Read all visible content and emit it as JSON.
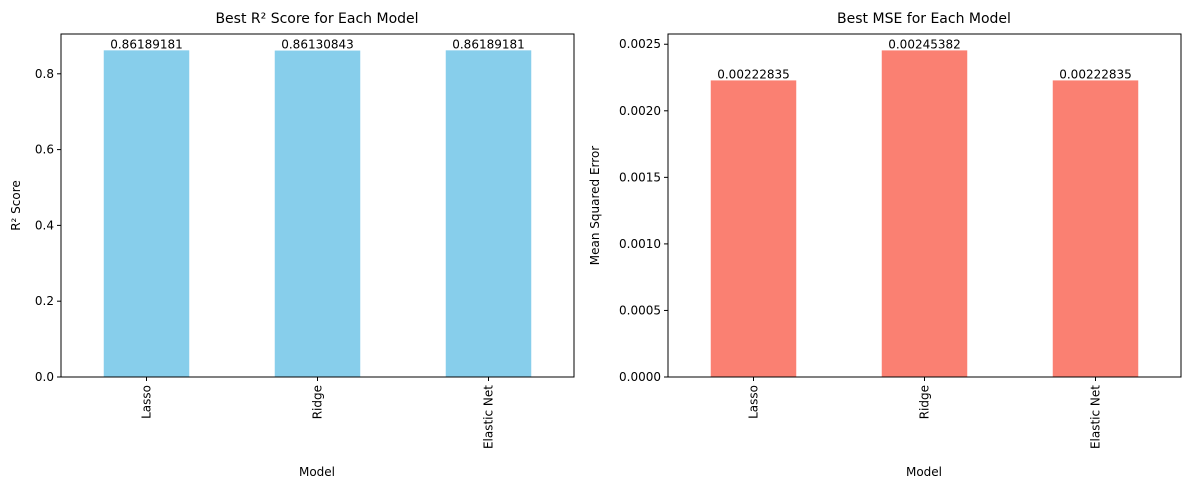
{
  "chart_data": [
    {
      "type": "bar",
      "title": "Best R² Score for Each Model",
      "xlabel": "Model",
      "ylabel": "R² Score",
      "categories": [
        "Lasso",
        "Ridge",
        "Elastic Net"
      ],
      "values": [
        0.86189181,
        0.86130843,
        0.86189181
      ],
      "value_labels": [
        "0.86189181",
        "0.86130843",
        "0.86189181"
      ],
      "yticks": [
        0.0,
        0.2,
        0.4,
        0.6,
        0.8
      ],
      "ytick_labels": [
        "0.0",
        "0.2",
        "0.4",
        "0.6",
        "0.8"
      ],
      "ylim": [
        0,
        0.905
      ],
      "color": "#87ceeb",
      "grid": false
    },
    {
      "type": "bar",
      "title": "Best MSE for Each Model",
      "xlabel": "Model",
      "ylabel": "Mean Squared Error",
      "categories": [
        "Lasso",
        "Ridge",
        "Elastic Net"
      ],
      "values": [
        0.00222835,
        0.00245382,
        0.00222835
      ],
      "value_labels": [
        "0.00222835",
        "0.00245382",
        "0.00222835"
      ],
      "yticks": [
        0.0,
        0.0005,
        0.001,
        0.0015,
        0.002,
        0.0025
      ],
      "ytick_labels": [
        "0.0000",
        "0.0005",
        "0.0010",
        "0.0015",
        "0.0020",
        "0.0025"
      ],
      "ylim": [
        0,
        0.002577
      ],
      "color": "#fa8072",
      "grid": false
    }
  ]
}
